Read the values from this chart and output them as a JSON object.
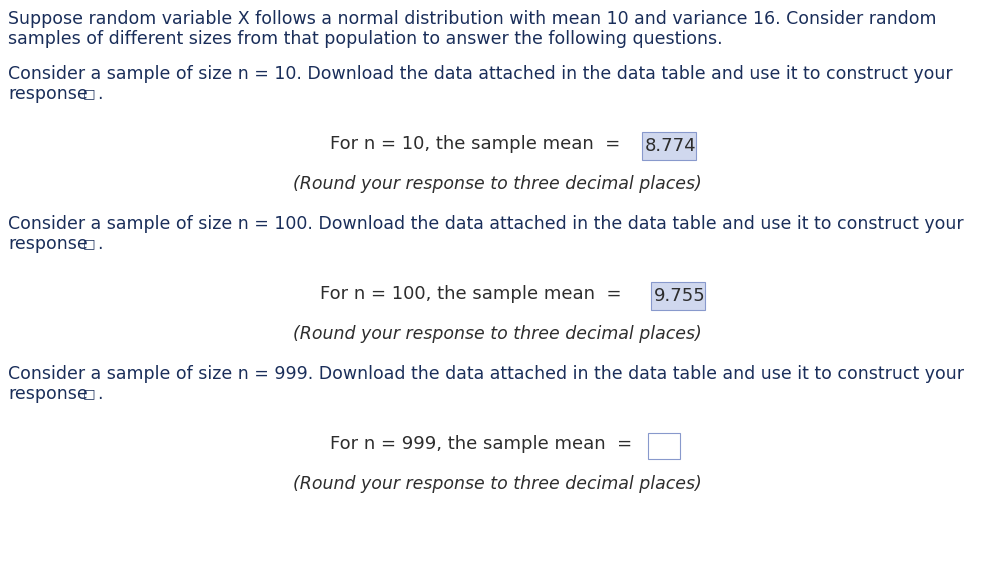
{
  "bg_color": "#ffffff",
  "text_color": "#1f3864",
  "body_color": "#1a2e5a",
  "center_color": "#2d2d2d",
  "italic_color": "#2d2d2d",
  "para1_line1": "Suppose random variable X follows a normal distribution with mean 10 and variance 16. Consider random",
  "para1_line2": "samples of different sizes from that population to answer the following questions.",
  "para2_line1": "Consider a sample of size n = 10. Download the data attached in the data table and use it to construct your",
  "para2_line2": "response",
  "center1_text": "For n = 10, the sample mean  = ",
  "center1_value": "8.774",
  "italic1_text": "(Round your response to three decimal places)",
  "para3_line1": "Consider a sample of size n = 100. Download the data attached in the data table and use it to construct your",
  "para3_line2": "response",
  "center2_text": "For n = 100, the sample mean  = ",
  "center2_value": "9.755",
  "italic2_text": "(Round your response to three decimal places)",
  "para4_line1": "Consider a sample of size n = 999. Download the data attached in the data table and use it to construct your",
  "para4_line2": "response",
  "center3_text": "For n = 999, the sample mean  = ",
  "italic3_text": "(Round your response to three decimal places)",
  "font_size_body": 12.5,
  "font_size_center": 13.0,
  "font_size_italic": 12.5,
  "highlight_color": "#d0d8ee",
  "highlight_border": "#8899cc",
  "empty_box_color": "#ffffff",
  "empty_box_border": "#8899cc",
  "figw": 9.94,
  "figh": 5.82,
  "dpi": 100
}
